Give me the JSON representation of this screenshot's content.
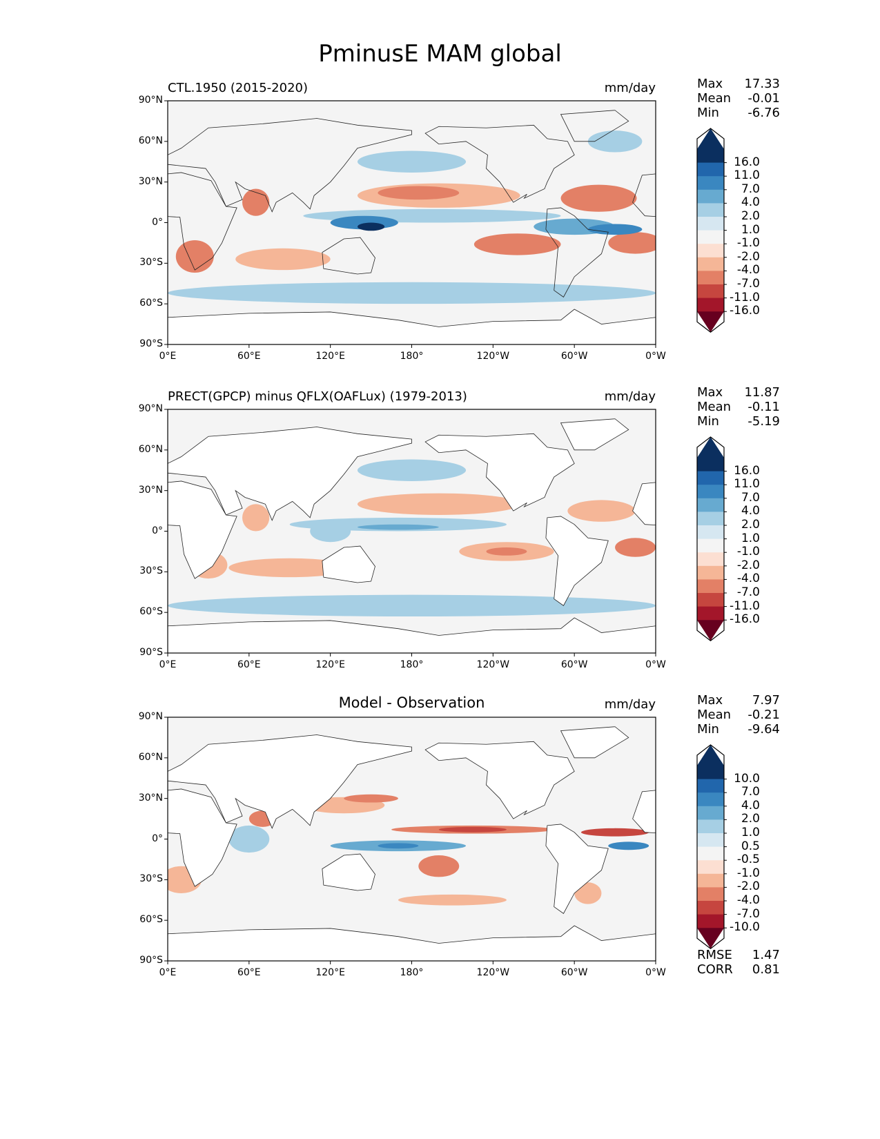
{
  "title": "PminusE MAM global",
  "colors": [
    "#0b2f5f",
    "#2166ac",
    "#3a87c0",
    "#67aad0",
    "#a6cfe4",
    "#d6e7f1",
    "#f4f4f4",
    "#fcdfd2",
    "#f5b697",
    "#e38066",
    "#c6463f",
    "#a3162a",
    "#67001f"
  ],
  "lon_ticks": [
    "0°E",
    "60°E",
    "120°E",
    "180°",
    "120°W",
    "60°W",
    "0°W"
  ],
  "lat_ticks": [
    "90°N",
    "60°N",
    "30°N",
    "0°",
    "30°S",
    "60°S",
    "90°S"
  ],
  "chart_data": [
    {
      "type": "heatmap",
      "title": "CTL.1950 (2015-2020)",
      "units": "mm/day",
      "x_range": [
        0,
        360
      ],
      "y_range": [
        -90,
        90
      ],
      "stats": {
        "max_label": "Max",
        "max": "17.33",
        "mean_label": "Mean",
        "mean": "-0.01",
        "min_label": "Min",
        "min": "-6.76"
      },
      "levels": [
        "16.0",
        "11.0",
        "7.0",
        "4.0",
        "2.0",
        "1.0",
        "-1.0",
        "-2.0",
        "-4.0",
        "-7.0",
        "-11.0",
        "-16.0"
      ]
    },
    {
      "type": "heatmap",
      "title": "PRECT(GPCP) minus QFLX(OAFLux) (1979-2013)",
      "units": "mm/day",
      "x_range": [
        0,
        360
      ],
      "y_range": [
        -90,
        90
      ],
      "stats": {
        "max_label": "Max",
        "max": "11.87",
        "mean_label": "Mean",
        "mean": "-0.11",
        "min_label": "Min",
        "min": "-5.19"
      },
      "levels": [
        "16.0",
        "11.0",
        "7.0",
        "4.0",
        "2.0",
        "1.0",
        "-1.0",
        "-2.0",
        "-4.0",
        "-7.0",
        "-11.0",
        "-16.0"
      ]
    },
    {
      "type": "heatmap",
      "title": "Model - Observation",
      "units": "mm/day",
      "x_range": [
        0,
        360
      ],
      "y_range": [
        -90,
        90
      ],
      "stats": {
        "max_label": "Max",
        "max": "7.97",
        "mean_label": "Mean",
        "mean": "-0.21",
        "min_label": "Min",
        "min": "-9.64"
      },
      "levels": [
        "10.0",
        "7.0",
        "4.0",
        "2.0",
        "1.0",
        "0.5",
        "-0.5",
        "-1.0",
        "-2.0",
        "-4.0",
        "-7.0",
        "-10.0"
      ],
      "extra": {
        "rmse_label": "RMSE",
        "rmse": "1.47",
        "corr_label": "CORR",
        "corr": "0.81"
      }
    }
  ]
}
